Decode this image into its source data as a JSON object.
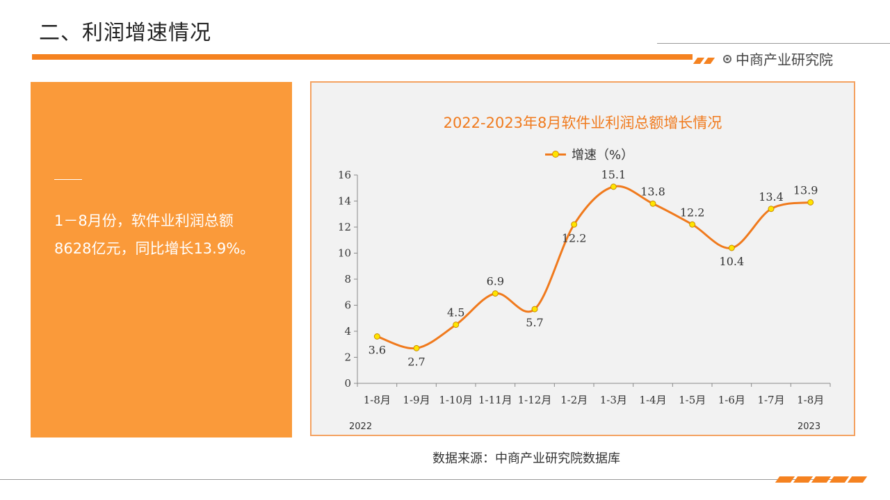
{
  "header": {
    "title": "二、利润增速情况",
    "brand": "中商产业研究院"
  },
  "summary": {
    "text_line1": "1－8月份，软件业利润总额",
    "text_line2": "8628亿元，同比增长13.9%。"
  },
  "source": "数据来源：中商产业研究院数据库",
  "colors": {
    "accent": "#F58220",
    "panel": "#FA9A3A",
    "line": "#F07A1D",
    "marker": "#FFE400"
  },
  "chart_data": {
    "type": "line",
    "title": "2022-2023年8月软件业利润总额增长情况",
    "categories": [
      "1-8月",
      "1-9月",
      "1-10月",
      "1-11月",
      "1-12月",
      "1-2月",
      "1-3月",
      "1-4月",
      "1-5月",
      "1-6月",
      "1-7月",
      "1-8月"
    ],
    "series": [
      {
        "name": "增速（%）",
        "values": [
          3.6,
          2.7,
          4.5,
          6.9,
          5.7,
          12.2,
          15.1,
          13.8,
          12.2,
          10.4,
          13.4,
          13.9
        ]
      }
    ],
    "ylim": [
      0,
      16
    ],
    "yticks": [
      0,
      2,
      4,
      6,
      8,
      10,
      12,
      14,
      16
    ],
    "year_labels": [
      "2022",
      "2023"
    ],
    "legend_position": "top-center",
    "grid": false
  }
}
